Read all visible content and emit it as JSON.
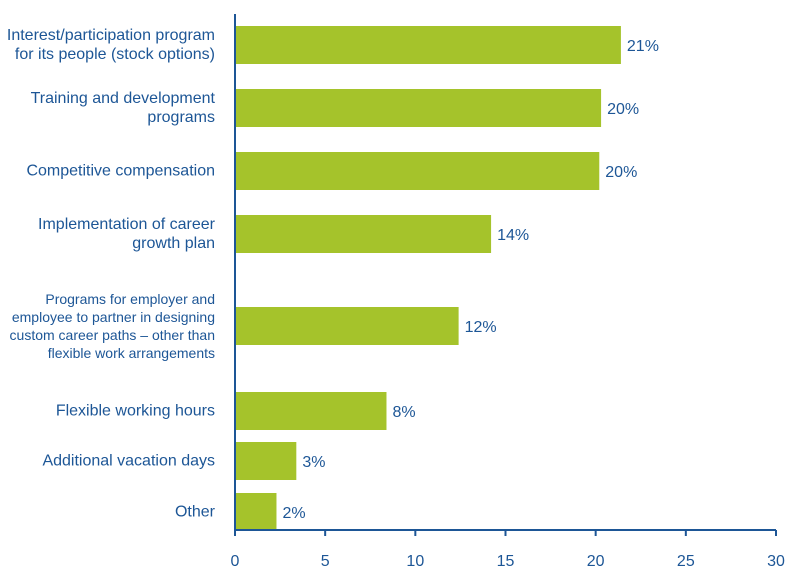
{
  "chart_data": {
    "type": "bar",
    "orientation": "horizontal",
    "categories": [
      "Interest/participation program for its people (stock options)",
      "Training and development programs",
      "Competitive compensation",
      "Implementation of career growth plan",
      "Programs for employer and employee to partner in designing custom career paths – other than flexible work arrangements",
      "Flexible working hours",
      "Additional vacation days",
      "Other"
    ],
    "values": [
      21.4,
      20.3,
      20.2,
      14.2,
      12.4,
      8.4,
      3.4,
      2.3
    ],
    "value_labels": [
      "21%",
      "20%",
      "20%",
      "14%",
      "12%",
      "8%",
      "3%",
      "2%"
    ],
    "color": "#a5c32b",
    "xlim": [
      0,
      30
    ],
    "xticks": [
      0,
      5,
      10,
      15,
      20,
      25,
      30
    ],
    "grid": false
  }
}
